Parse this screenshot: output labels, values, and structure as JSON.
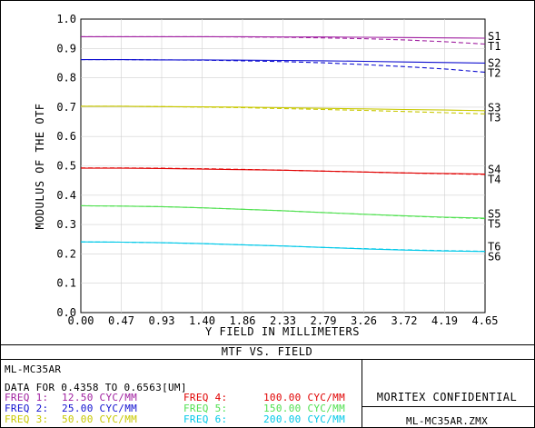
{
  "chart_data": {
    "type": "line",
    "title": "MTF VS. FIELD",
    "xlabel": "Y FIELD IN MILLIMETERS",
    "ylabel": "MODULUS OF THE OTF",
    "xlim": [
      0,
      4.65
    ],
    "ylim": [
      0,
      1.0
    ],
    "x_ticks": [
      "0.00",
      "0.47",
      "0.93",
      "1.40",
      "1.86",
      "2.33",
      "2.79",
      "3.26",
      "3.72",
      "4.19",
      "4.65"
    ],
    "y_ticks": [
      "0.0",
      "0.1",
      "0.2",
      "0.3",
      "0.4",
      "0.5",
      "0.6",
      "0.7",
      "0.8",
      "0.9",
      "1.0"
    ],
    "grid": true,
    "x": [
      0.0,
      0.47,
      0.93,
      1.4,
      1.86,
      2.33,
      2.79,
      3.26,
      3.72,
      4.19,
      4.65
    ],
    "series": [
      {
        "name": "S1",
        "color": "#a020a0",
        "dashed": false,
        "values": [
          0.94,
          0.94,
          0.94,
          0.94,
          0.94,
          0.939,
          0.939,
          0.938,
          0.937,
          0.936,
          0.935
        ]
      },
      {
        "name": "T1",
        "color": "#a020a0",
        "dashed": true,
        "values": [
          0.94,
          0.94,
          0.94,
          0.94,
          0.939,
          0.938,
          0.936,
          0.933,
          0.929,
          0.923,
          0.915
        ]
      },
      {
        "name": "S2",
        "color": "#1010d0",
        "dashed": false,
        "values": [
          0.862,
          0.862,
          0.861,
          0.861,
          0.86,
          0.859,
          0.858,
          0.856,
          0.854,
          0.852,
          0.85
        ]
      },
      {
        "name": "T2",
        "color": "#1010d0",
        "dashed": true,
        "values": [
          0.862,
          0.862,
          0.861,
          0.86,
          0.858,
          0.855,
          0.851,
          0.845,
          0.838,
          0.83,
          0.819
        ]
      },
      {
        "name": "S3",
        "color": "#c8c800",
        "dashed": false,
        "values": [
          0.703,
          0.703,
          0.702,
          0.701,
          0.7,
          0.698,
          0.696,
          0.694,
          0.692,
          0.69,
          0.688
        ]
      },
      {
        "name": "T3",
        "color": "#c8c800",
        "dashed": true,
        "values": [
          0.703,
          0.703,
          0.702,
          0.7,
          0.698,
          0.695,
          0.692,
          0.689,
          0.685,
          0.681,
          0.677
        ]
      },
      {
        "name": "S4",
        "color": "#e00000",
        "dashed": false,
        "values": [
          0.492,
          0.492,
          0.491,
          0.489,
          0.487,
          0.485,
          0.482,
          0.479,
          0.476,
          0.474,
          0.472
        ]
      },
      {
        "name": "T4",
        "color": "#e00000",
        "dashed": true,
        "values": [
          0.493,
          0.493,
          0.492,
          0.49,
          0.488,
          0.485,
          0.482,
          0.479,
          0.476,
          0.473,
          0.471
        ]
      },
      {
        "name": "S5",
        "color": "#50e050",
        "dashed": false,
        "values": [
          0.364,
          0.363,
          0.361,
          0.357,
          0.352,
          0.347,
          0.341,
          0.335,
          0.33,
          0.325,
          0.322
        ]
      },
      {
        "name": "T5",
        "color": "#50e050",
        "dashed": true,
        "values": [
          0.364,
          0.363,
          0.361,
          0.357,
          0.352,
          0.347,
          0.341,
          0.335,
          0.329,
          0.324,
          0.32
        ]
      },
      {
        "name": "S6",
        "color": "#00c8e8",
        "dashed": false,
        "values": [
          0.241,
          0.24,
          0.238,
          0.235,
          0.231,
          0.227,
          0.222,
          0.217,
          0.213,
          0.21,
          0.208
        ]
      },
      {
        "name": "T6",
        "color": "#00c8e8",
        "dashed": true,
        "values": [
          0.241,
          0.24,
          0.238,
          0.235,
          0.231,
          0.227,
          0.222,
          0.218,
          0.214,
          0.211,
          0.209
        ]
      }
    ]
  },
  "info": {
    "lens": "ML-MC35AR",
    "data_range": "DATA FOR 0.4358 TO 0.6563[UM]",
    "frequencies": [
      {
        "label": "FREQ 1:",
        "value": "12.50 CYC/MM",
        "color": "#a020a0"
      },
      {
        "label": "FREQ 2:",
        "value": "25.00 CYC/MM",
        "color": "#1010d0"
      },
      {
        "label": "FREQ 3:",
        "value": "50.00 CYC/MM",
        "color": "#c8c800"
      },
      {
        "label": "FREQ 4:",
        "value": "100.00 CYC/MM",
        "color": "#e00000"
      },
      {
        "label": "FREQ 5:",
        "value": "150.00 CYC/MM",
        "color": "#50e050"
      },
      {
        "label": "FREQ 6:",
        "value": "200.00 CYC/MM",
        "color": "#00c8e8"
      }
    ],
    "confidential": "MORITEX CONFIDENTIAL",
    "file": "ML-MC35AR.ZMX"
  }
}
